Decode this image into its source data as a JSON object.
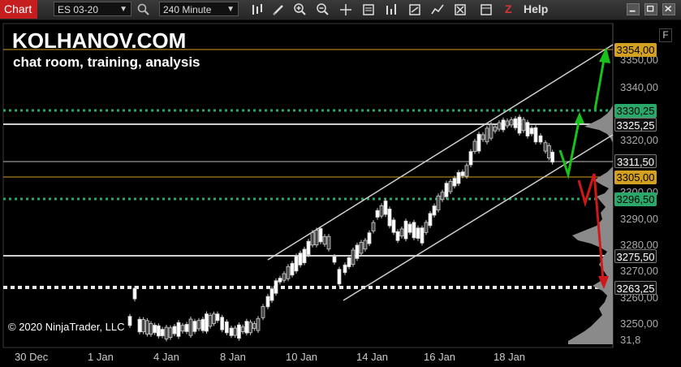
{
  "window": {
    "title": "Chart",
    "help_label": "Help",
    "z_label": "Z"
  },
  "toolbar": {
    "instrument": "ES 03-20",
    "interval": "240 Minute"
  },
  "branding": {
    "name": "KOLHANOV.COM",
    "tagline": "chat room, training, analysis",
    "copyright": "© 2020 NinjaTrader, LLC"
  },
  "price_axis": {
    "ticks": [
      "3350,00",
      "3340,00",
      "3320,00",
      "3300,00",
      "3290,00",
      "3280,00",
      "3270,00",
      "3260,00",
      "3250,00",
      "31,8"
    ],
    "labels": [
      {
        "text": "3354,00",
        "bg": "#d4a020",
        "fg": "#000"
      },
      {
        "text": "3330,25",
        "bg": "#2aa86a",
        "fg": "#000"
      },
      {
        "text": "3325,25",
        "bg": "#111",
        "fg": "#fff"
      },
      {
        "text": "3311,50",
        "bg": "#111",
        "fg": "#fff"
      },
      {
        "text": "3305,00",
        "bg": "#d4a020",
        "fg": "#000"
      },
      {
        "text": "3296,50",
        "bg": "#2aa86a",
        "fg": "#000"
      },
      {
        "text": "3275,50",
        "bg": "#111",
        "fg": "#fff"
      },
      {
        "text": "3263,25",
        "bg": "#111",
        "fg": "#fff"
      }
    ],
    "f_label": "F"
  },
  "dates": [
    "30 Dec",
    "1 Jan",
    "4 Jan",
    "8 Jan",
    "10 Jan",
    "14 Jan",
    "16 Jan",
    "18 Jan"
  ],
  "colors": {
    "gold": "#d4a020",
    "green": "#2aa86a",
    "arrow_green": "#18c21a",
    "arrow_red": "#d01818",
    "channel": "#cfcfcf"
  }
}
